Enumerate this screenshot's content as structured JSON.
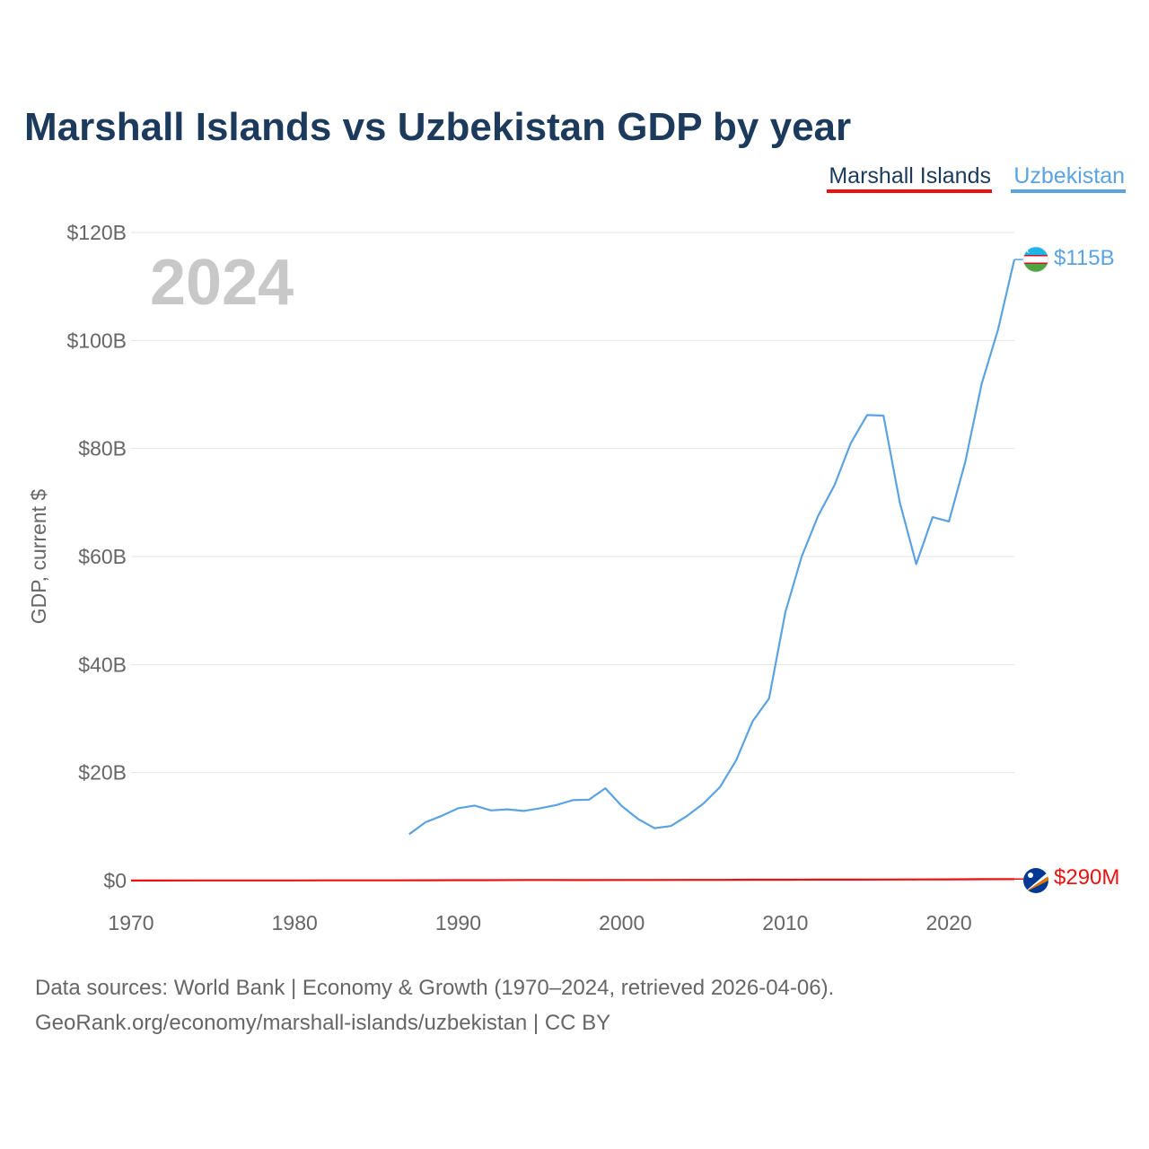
{
  "title": "Marshall Islands vs Uzbekistan GDP by year",
  "year_label": "2024",
  "footer": {
    "line1": "Data sources: World Bank | Economy & Growth (1970–2024, retrieved 2026-04-06).",
    "line2": "GeoRank.org/economy/marshall-islands/uzbekistan | CC BY"
  },
  "colors": {
    "marshall": "#ee1111",
    "uzbekistan": "#5ba3e0",
    "title": "#1b3a5c"
  },
  "chart_data": {
    "type": "line",
    "title": "Marshall Islands vs Uzbekistan GDP by year",
    "xlabel": "",
    "ylabel": "GDP, current $",
    "xlim": [
      1970,
      2024
    ],
    "ylim": [
      0,
      120
    ],
    "y_unit": "billions USD",
    "x_ticks": [
      "1970",
      "1980",
      "1990",
      "2000",
      "2010",
      "2020"
    ],
    "y_ticks": [
      "$0",
      "$20B",
      "$40B",
      "$60B",
      "$80B",
      "$100B",
      "$120B"
    ],
    "legend_position": "top-right",
    "series": [
      {
        "name": "Marshall Islands",
        "color": "#ee1111",
        "end_label": "$290M",
        "flag": "marshall-islands-flag-icon",
        "x": [
          1970,
          1972,
          1974,
          1976,
          1978,
          1980,
          1982,
          1984,
          1986,
          1988,
          1990,
          1992,
          1994,
          1996,
          1998,
          2000,
          2002,
          2004,
          2006,
          2008,
          2010,
          2012,
          2014,
          2016,
          2018,
          2020,
          2022,
          2024
        ],
        "values": [
          0.02,
          0.02,
          0.025,
          0.03,
          0.035,
          0.04,
          0.045,
          0.05,
          0.055,
          0.065,
          0.075,
          0.09,
          0.11,
          0.11,
          0.1,
          0.11,
          0.12,
          0.13,
          0.14,
          0.16,
          0.17,
          0.19,
          0.19,
          0.2,
          0.22,
          0.24,
          0.26,
          0.29
        ]
      },
      {
        "name": "Uzbekistan",
        "color": "#5ba3e0",
        "end_label": "$115B",
        "flag": "uzbekistan-flag-icon",
        "x": [
          1987,
          1988,
          1989,
          1990,
          1991,
          1992,
          1993,
          1994,
          1995,
          1996,
          1997,
          1998,
          1999,
          2000,
          2001,
          2002,
          2003,
          2004,
          2005,
          2006,
          2007,
          2008,
          2009,
          2010,
          2011,
          2012,
          2013,
          2014,
          2015,
          2016,
          2017,
          2018,
          2019,
          2020,
          2021,
          2022,
          2023,
          2024
        ],
        "values": [
          8.6,
          10.8,
          12.0,
          13.4,
          13.9,
          13.0,
          13.2,
          12.9,
          13.4,
          14.0,
          14.9,
          15.0,
          17.1,
          13.8,
          11.4,
          9.7,
          10.1,
          12.0,
          14.3,
          17.3,
          22.3,
          29.5,
          33.7,
          49.7,
          60.0,
          67.5,
          73.2,
          81.0,
          86.2,
          86.1,
          70.0,
          58.6,
          67.3,
          66.5,
          77.5,
          92.0,
          102.0,
          115.0
        ]
      }
    ]
  }
}
